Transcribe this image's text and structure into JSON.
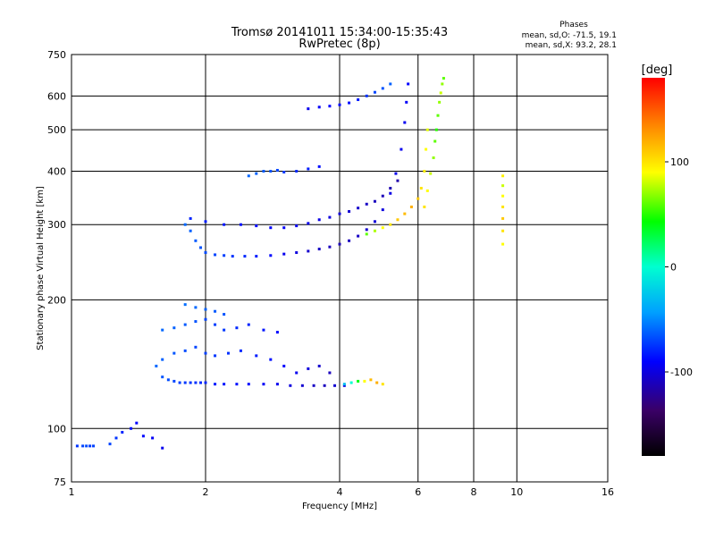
{
  "chart_data": {
    "type": "scatter",
    "title": "Tromsø 20141011 15:34:00-15:35:43",
    "subtitle": "RwPretec (8p)",
    "phase_box": {
      "heading": "Phases",
      "line_o": "mean, sd,O: -71.5, 19.1",
      "line_x": "mean, sd,X:  93.2, 28.1"
    },
    "xlabel": "Frequency [MHz]",
    "ylabel": "Stationary phase Virtual Height [km]",
    "x_scale": "log",
    "y_scale": "log",
    "xlim": [
      1,
      16
    ],
    "ylim": [
      75,
      750
    ],
    "xticks": [
      {
        "v": 1,
        "label": "1"
      },
      {
        "v": 2,
        "label": "2"
      },
      {
        "v": 4,
        "label": "4"
      },
      {
        "v": 6,
        "label": "6"
      },
      {
        "v": 8,
        "label": "8"
      },
      {
        "v": 10,
        "label": "10"
      },
      {
        "v": 16,
        "label": "16"
      }
    ],
    "yticks": [
      {
        "v": 75,
        "label": "75"
      },
      {
        "v": 100,
        "label": "100"
      },
      {
        "v": 200,
        "label": "200"
      },
      {
        "v": 300,
        "label": "300"
      },
      {
        "v": 400,
        "label": "400"
      },
      {
        "v": 500,
        "label": "500"
      },
      {
        "v": 600,
        "label": "600"
      },
      {
        "v": 750,
        "label": "750"
      }
    ],
    "grid": true,
    "colorbar": {
      "label": "[deg]",
      "range": [
        -180,
        180
      ],
      "ticks": [
        {
          "v": 100,
          "label": "100"
        },
        {
          "v": 0,
          "label": "0"
        },
        {
          "v": -100,
          "label": "-100"
        }
      ],
      "colormap": "rainbow"
    },
    "series": [
      {
        "traces": [
          {
            "f": [
              1.0,
              1.03,
              1.06,
              1.08,
              1.1,
              1.12
            ],
            "h": [
              91,
              91,
              91,
              91,
              91,
              91
            ],
            "phase": [
              -72,
              -75,
              -70,
              -68,
              -73,
              -71
            ]
          },
          {
            "f": [
              1.22,
              1.26,
              1.3,
              1.36,
              1.4,
              1.45,
              1.52,
              1.6
            ],
            "h": [
              92,
              95,
              98,
              100,
              103,
              96,
              95,
              90
            ],
            "phase": [
              -70,
              -75,
              -80,
              -85,
              -90,
              -88,
              -92,
              -95
            ]
          },
          {
            "f": [
              1.6,
              1.65,
              1.7,
              1.75,
              1.8,
              1.85,
              1.9,
              1.95,
              2.0,
              2.1,
              2.2,
              2.35,
              2.5,
              2.7,
              2.9,
              3.1,
              3.3,
              3.5,
              3.7,
              3.9,
              4.1
            ],
            "h": [
              132,
              130,
              129,
              128,
              128,
              128,
              128,
              128,
              128,
              127,
              127,
              127,
              127,
              127,
              127,
              126,
              126,
              126,
              126,
              126,
              126
            ],
            "phase": [
              -65,
              -68,
              -70,
              -72,
              -74,
              -75,
              -76,
              -78,
              -80,
              -82,
              -84,
              -86,
              -88,
              -92,
              -95,
              -100,
              -104,
              -108,
              -110,
              -104,
              -100
            ]
          },
          {
            "f": [
              1.55,
              1.6,
              1.7,
              1.8,
              1.9,
              2.0,
              2.1,
              2.25,
              2.4,
              2.6,
              2.8,
              3.0,
              3.2,
              3.4,
              3.6,
              3.8
            ],
            "h": [
              140,
              145,
              150,
              152,
              155,
              150,
              148,
              150,
              152,
              148,
              145,
              140,
              135,
              138,
              140,
              135
            ],
            "phase": [
              -60,
              -62,
              -65,
              -68,
              -70,
              -72,
              -74,
              -76,
              -78,
              -82,
              -86,
              -90,
              -95,
              -100,
              -105,
              -110
            ]
          },
          {
            "f": [
              1.6,
              1.7,
              1.8,
              1.9,
              2.0,
              2.1,
              2.2,
              2.35,
              2.5,
              2.7,
              2.9
            ],
            "h": [
              170,
              172,
              175,
              178,
              180,
              175,
              170,
              172,
              175,
              170,
              168
            ],
            "phase": [
              -60,
              -62,
              -64,
              -66,
              -70,
              -72,
              -74,
              -78,
              -80,
              -84,
              -88
            ]
          },
          {
            "f": [
              1.8,
              1.9,
              2.0,
              2.1,
              2.2
            ],
            "h": [
              195,
              192,
              190,
              188,
              185
            ],
            "phase": [
              -58,
              -60,
              -62,
              -64,
              -66
            ]
          },
          {
            "f": [
              4.1,
              4.25,
              4.4,
              4.55,
              4.7,
              4.85,
              5.0
            ],
            "h": [
              127,
              128,
              129,
              129,
              130,
              128,
              127
            ],
            "phase": [
              -30,
              0,
              40,
              90,
              115,
              120,
              100
            ]
          },
          {
            "f": [
              1.8,
              1.85,
              1.9,
              1.95,
              2.0,
              2.1,
              2.2,
              2.3,
              2.45,
              2.6,
              2.8,
              3.0,
              3.2,
              3.4,
              3.6,
              3.8,
              4.0,
              4.2,
              4.4,
              4.6,
              4.8,
              5.0,
              5.2,
              5.35,
              5.5,
              5.6,
              5.65,
              5.7
            ],
            "h": [
              300,
              290,
              275,
              265,
              258,
              255,
              254,
              253,
              253,
              253,
              254,
              256,
              258,
              260,
              263,
              266,
              270,
              275,
              282,
              292,
              305,
              325,
              355,
              395,
              450,
              520,
              580,
              640
            ],
            "phase": [
              -60,
              -62,
              -64,
              -66,
              -68,
              -70,
              -72,
              -75,
              -78,
              -82,
              -88,
              -95,
              -100,
              -105,
              -108,
              -110,
              -112,
              -110,
              -108,
              -105,
              -102,
              -100,
              -98,
              -96,
              -95,
              -94,
              -92,
              -90
            ]
          },
          {
            "f": [
              1.85,
              2.0,
              2.2,
              2.4,
              2.6,
              2.8,
              3.0,
              3.2,
              3.4,
              3.6,
              3.8,
              4.0,
              4.2,
              4.4,
              4.6,
              4.8,
              5.0,
              5.2,
              5.4
            ],
            "h": [
              310,
              305,
              300,
              300,
              298,
              295,
              295,
              298,
              302,
              308,
              312,
              318,
              322,
              328,
              335,
              340,
              350,
              365,
              380
            ],
            "phase": [
              -80,
              -82,
              -84,
              -86,
              -88,
              -90,
              -92,
              -94,
              -96,
              -98,
              -100,
              -102,
              -104,
              -106,
              -108,
              -110,
              -112,
              -114,
              -116
            ]
          },
          {
            "f": [
              4.6,
              4.8,
              5.0,
              5.2,
              5.4,
              5.6,
              5.8,
              6.0,
              6.1,
              6.2,
              6.25,
              6.3
            ],
            "h": [
              285,
              290,
              295,
              300,
              308,
              318,
              330,
              345,
              365,
              400,
              450,
              500
            ],
            "phase": [
              60,
              75,
              90,
              100,
              110,
              115,
              120,
              110,
              100,
              95,
              90,
              85
            ]
          },
          {
            "f": [
              6.2,
              6.3,
              6.4,
              6.5,
              6.55,
              6.6,
              6.65,
              6.7,
              6.75,
              6.8,
              6.85
            ],
            "h": [
              330,
              360,
              395,
              430,
              470,
              500,
              540,
              580,
              610,
              640,
              660
            ],
            "phase": [
              100,
              90,
              80,
              70,
              60,
              50,
              60,
              70,
              80,
              70,
              60
            ]
          },
          {
            "f": [
              3.4,
              3.6,
              3.8,
              4.0,
              4.2,
              4.4,
              4.6,
              4.8,
              5.0,
              5.2
            ],
            "h": [
              560,
              565,
              568,
              572,
              578,
              588,
              600,
              612,
              625,
              640
            ],
            "phase": [
              -95,
              -92,
              -90,
              -88,
              -86,
              -82,
              -76,
              -70,
              -66,
              -62
            ]
          },
          {
            "f": [
              2.5,
              2.6,
              2.7,
              2.8,
              2.9,
              3.0,
              3.2,
              3.4,
              3.6
            ],
            "h": [
              390,
              395,
              400,
              400,
              402,
              398,
              400,
              405,
              410
            ],
            "phase": [
              -60,
              -62,
              -64,
              -66,
              -70,
              -74,
              -78,
              -82,
              -86
            ]
          },
          {
            "f": [
              9.3,
              9.3,
              9.3,
              9.3,
              9.3,
              9.3,
              9.3
            ],
            "h": [
              270,
              290,
              310,
              330,
              350,
              370,
              390
            ],
            "phase": [
              90,
              100,
              110,
              100,
              90,
              80,
              95
            ]
          }
        ]
      }
    ]
  }
}
